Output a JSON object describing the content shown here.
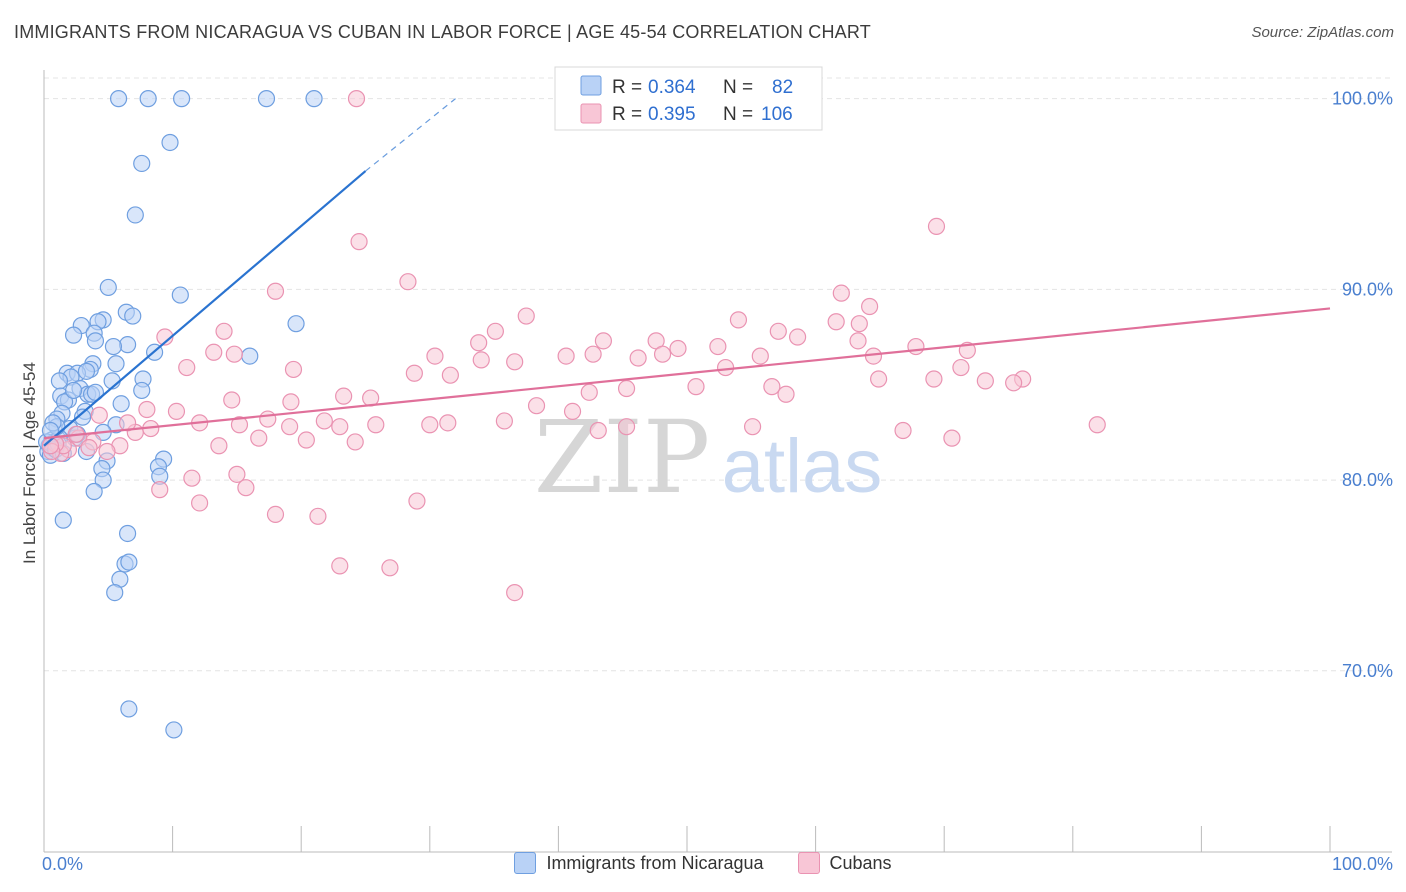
{
  "header": {
    "title": "IMMIGRANTS FROM NICARAGUA VS CUBAN IN LABOR FORCE | AGE 45-54 CORRELATION CHART",
    "source": "Source: ZipAtlas.com"
  },
  "watermark": {
    "part1": "ZIP",
    "part2": "atlas"
  },
  "colors": {
    "blue_fill": "#b9d2f6",
    "blue_stroke": "#6f9fe0",
    "blue_line": "#2a73d0",
    "pink_fill": "#f8c6d6",
    "pink_stroke": "#ea93b2",
    "pink_line": "#e0709a",
    "tick_label": "#4a7fcf",
    "grid": "#e4e4e4"
  },
  "chart_data": {
    "type": "scatter",
    "ylabel": "In Labor Force | Age 45-54",
    "xlim": [
      0,
      100
    ],
    "ylim": [
      60.5,
      101.5
    ],
    "x_tick_labels": [
      "0.0%",
      "100.0%"
    ],
    "y_ticks": [
      70,
      80,
      90,
      100
    ],
    "y_tick_labels": [
      "70.0%",
      "80.0%",
      "90.0%",
      "100.0%"
    ],
    "grid": true,
    "legend_position": "top-center",
    "legend": [
      {
        "r_label": "R =",
        "r_value": "0.364",
        "n_label": "N =",
        "n_value": "82"
      },
      {
        "r_label": "R =",
        "r_value": "0.395",
        "n_label": "N =",
        "n_value": "106"
      }
    ],
    "series": [
      {
        "name": "Immigrants from Nicaragua",
        "color": "blue",
        "trend": {
          "x0": 0,
          "y0": 81.8,
          "x_solid_end": 25,
          "y_solid_end": 96.2,
          "x_dash_end": 32,
          "y_dash_end": 100.0
        },
        "points": [
          [
            5.8,
            100
          ],
          [
            8.1,
            100
          ],
          [
            10.7,
            100
          ],
          [
            17.3,
            100
          ],
          [
            21.0,
            100
          ],
          [
            9.8,
            97.7
          ],
          [
            7.6,
            96.6
          ],
          [
            7.1,
            93.9
          ],
          [
            5.0,
            90.1
          ],
          [
            10.6,
            89.7
          ],
          [
            6.4,
            88.8
          ],
          [
            6.9,
            88.6
          ],
          [
            4.6,
            88.4
          ],
          [
            4.2,
            88.3
          ],
          [
            19.6,
            88.2
          ],
          [
            2.9,
            88.1
          ],
          [
            2.3,
            87.6
          ],
          [
            3.9,
            87.7
          ],
          [
            4.0,
            87.3
          ],
          [
            6.5,
            87.1
          ],
          [
            5.4,
            87.0
          ],
          [
            8.6,
            86.7
          ],
          [
            16.0,
            86.5
          ],
          [
            3.8,
            86.1
          ],
          [
            5.6,
            86.1
          ],
          [
            3.6,
            85.8
          ],
          [
            1.8,
            85.6
          ],
          [
            2.6,
            85.6
          ],
          [
            3.3,
            85.7
          ],
          [
            2.1,
            85.4
          ],
          [
            7.7,
            85.3
          ],
          [
            1.2,
            85.2
          ],
          [
            5.3,
            85.2
          ],
          [
            2.8,
            84.8
          ],
          [
            3.4,
            84.5
          ],
          [
            3.7,
            84.5
          ],
          [
            7.6,
            84.7
          ],
          [
            1.3,
            84.4
          ],
          [
            1.9,
            84.2
          ],
          [
            1.6,
            84.1
          ],
          [
            6.0,
            84.0
          ],
          [
            1.4,
            83.5
          ],
          [
            3.2,
            83.6
          ],
          [
            1.0,
            83.2
          ],
          [
            5.6,
            82.9
          ],
          [
            2.0,
            82.7
          ],
          [
            4.6,
            82.5
          ],
          [
            0.6,
            82.1
          ],
          [
            0.8,
            82.0
          ],
          [
            1.2,
            82.2
          ],
          [
            2.4,
            82.2
          ],
          [
            0.4,
            81.8
          ],
          [
            0.6,
            81.7
          ],
          [
            0.3,
            81.5
          ],
          [
            0.5,
            81.3
          ],
          [
            3.3,
            81.5
          ],
          [
            9.3,
            81.1
          ],
          [
            4.9,
            81.0
          ],
          [
            8.9,
            80.7
          ],
          [
            4.5,
            80.6
          ],
          [
            9.0,
            80.2
          ],
          [
            4.6,
            80.0
          ],
          [
            3.9,
            79.4
          ],
          [
            1.5,
            77.9
          ],
          [
            6.5,
            77.2
          ],
          [
            6.3,
            75.6
          ],
          [
            6.6,
            75.7
          ],
          [
            5.9,
            74.8
          ],
          [
            5.5,
            74.1
          ],
          [
            6.6,
            68.0
          ],
          [
            10.1,
            66.9
          ],
          [
            1.0,
            82.8
          ],
          [
            0.2,
            82.0
          ],
          [
            0.9,
            81.6
          ],
          [
            2.3,
            84.7
          ],
          [
            4.0,
            84.6
          ],
          [
            0.7,
            83.0
          ],
          [
            1.1,
            81.9
          ],
          [
            3.0,
            83.3
          ],
          [
            2.6,
            82.4
          ],
          [
            0.5,
            82.6
          ],
          [
            1.5,
            81.4
          ]
        ]
      },
      {
        "name": "Cubans",
        "color": "pink",
        "trend": {
          "x0": 0,
          "y0": 82.2,
          "x1": 100,
          "y1": 89.0
        },
        "points": [
          [
            24.3,
            100
          ],
          [
            69.4,
            93.3
          ],
          [
            24.5,
            92.5
          ],
          [
            28.3,
            90.4
          ],
          [
            18.0,
            89.9
          ],
          [
            62.0,
            89.8
          ],
          [
            64.2,
            89.1
          ],
          [
            37.5,
            88.6
          ],
          [
            54.0,
            88.4
          ],
          [
            61.6,
            88.3
          ],
          [
            63.4,
            88.2
          ],
          [
            57.1,
            87.8
          ],
          [
            35.1,
            87.8
          ],
          [
            14.0,
            87.8
          ],
          [
            9.4,
            87.5
          ],
          [
            58.6,
            87.5
          ],
          [
            43.5,
            87.3
          ],
          [
            33.8,
            87.2
          ],
          [
            47.6,
            87.3
          ],
          [
            49.3,
            86.9
          ],
          [
            52.4,
            87.0
          ],
          [
            63.3,
            87.3
          ],
          [
            67.8,
            87.0
          ],
          [
            71.8,
            86.8
          ],
          [
            14.8,
            86.6
          ],
          [
            13.2,
            86.7
          ],
          [
            30.4,
            86.5
          ],
          [
            36.6,
            86.2
          ],
          [
            46.2,
            86.4
          ],
          [
            40.6,
            86.5
          ],
          [
            42.7,
            86.6
          ],
          [
            48.1,
            86.6
          ],
          [
            34.0,
            86.3
          ],
          [
            55.7,
            86.5
          ],
          [
            53.0,
            85.9
          ],
          [
            64.5,
            86.5
          ],
          [
            11.1,
            85.9
          ],
          [
            19.4,
            85.8
          ],
          [
            28.8,
            85.6
          ],
          [
            31.6,
            85.5
          ],
          [
            71.3,
            85.9
          ],
          [
            76.1,
            85.3
          ],
          [
            73.2,
            85.2
          ],
          [
            69.2,
            85.3
          ],
          [
            75.4,
            85.1
          ],
          [
            64.9,
            85.3
          ],
          [
            50.7,
            84.9
          ],
          [
            56.6,
            84.9
          ],
          [
            45.3,
            84.8
          ],
          [
            42.4,
            84.6
          ],
          [
            25.4,
            84.3
          ],
          [
            23.3,
            84.4
          ],
          [
            14.6,
            84.2
          ],
          [
            19.2,
            84.1
          ],
          [
            57.7,
            84.5
          ],
          [
            8.0,
            83.7
          ],
          [
            10.3,
            83.6
          ],
          [
            17.4,
            83.2
          ],
          [
            21.8,
            83.1
          ],
          [
            31.4,
            83.0
          ],
          [
            30.0,
            82.9
          ],
          [
            25.8,
            82.9
          ],
          [
            19.1,
            82.8
          ],
          [
            23.0,
            82.8
          ],
          [
            15.2,
            82.9
          ],
          [
            12.1,
            83.0
          ],
          [
            38.3,
            83.9
          ],
          [
            41.1,
            83.6
          ],
          [
            35.8,
            83.1
          ],
          [
            43.1,
            82.6
          ],
          [
            45.3,
            82.8
          ],
          [
            55.1,
            82.8
          ],
          [
            66.8,
            82.6
          ],
          [
            81.9,
            82.9
          ],
          [
            70.6,
            82.2
          ],
          [
            24.2,
            82.0
          ],
          [
            20.4,
            82.1
          ],
          [
            16.7,
            82.2
          ],
          [
            13.6,
            81.8
          ],
          [
            7.1,
            82.5
          ],
          [
            8.3,
            82.7
          ],
          [
            5.9,
            81.8
          ],
          [
            4.9,
            81.5
          ],
          [
            3.8,
            82.0
          ],
          [
            2.7,
            82.2
          ],
          [
            1.9,
            81.6
          ],
          [
            2.5,
            82.4
          ],
          [
            1.3,
            81.4
          ],
          [
            1.5,
            81.8
          ],
          [
            0.9,
            81.9
          ],
          [
            0.6,
            81.5
          ],
          [
            0.5,
            81.8
          ],
          [
            9.0,
            79.5
          ],
          [
            11.5,
            80.1
          ],
          [
            15.0,
            80.3
          ],
          [
            15.7,
            79.6
          ],
          [
            18.0,
            78.2
          ],
          [
            12.1,
            78.8
          ],
          [
            21.3,
            78.1
          ],
          [
            29.0,
            78.9
          ],
          [
            23.0,
            75.5
          ],
          [
            26.9,
            75.4
          ],
          [
            36.6,
            74.1
          ],
          [
            4.3,
            83.4
          ],
          [
            6.5,
            83.0
          ],
          [
            3.5,
            81.7
          ]
        ]
      }
    ]
  }
}
